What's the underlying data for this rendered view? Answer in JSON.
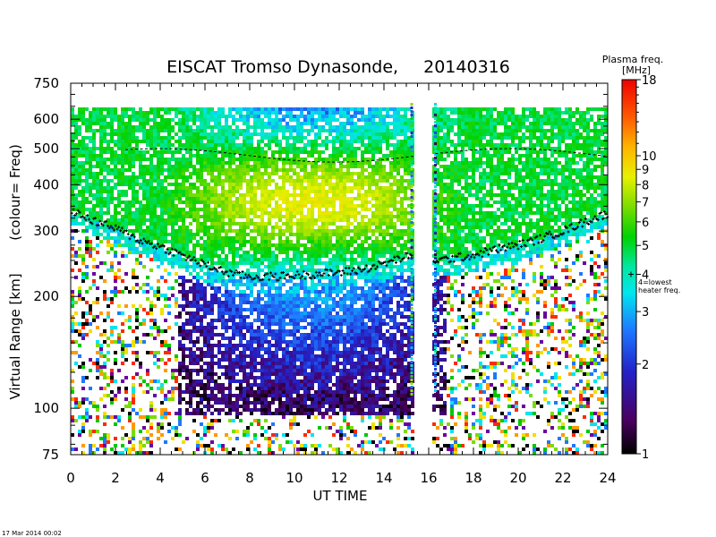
{
  "chart_data": {
    "type": "heatmap",
    "title": "EISCAT Tromso Dynasonde,",
    "date": "20140316",
    "xlabel": "UT TIME",
    "ylabel": "Virtual Range [km]",
    "ylabel_note": "(colour= Freq)",
    "x_range": [
      0,
      24
    ],
    "x_ticks": [
      "0",
      "2",
      "4",
      "6",
      "8",
      "10",
      "12",
      "14",
      "16",
      "18",
      "20",
      "22",
      "24"
    ],
    "y_scale": "log",
    "y_range": [
      75,
      750
    ],
    "y_ticks": [
      {
        "v": 75,
        "label": "75"
      },
      {
        "v": 100,
        "label": "100"
      },
      {
        "v": 200,
        "label": "200"
      },
      {
        "v": 300,
        "label": "300"
      },
      {
        "v": 400,
        "label": "400"
      },
      {
        "v": 500,
        "label": "500"
      },
      {
        "v": 600,
        "label": "600"
      },
      {
        "v": 750,
        "label": "750"
      }
    ],
    "data_gap_hours": [
      15.3,
      16.2
    ],
    "layer_trace": [
      {
        "ut": 0,
        "km": 340
      },
      {
        "ut": 1,
        "km": 320
      },
      {
        "ut": 2,
        "km": 305
      },
      {
        "ut": 3,
        "km": 285
      },
      {
        "ut": 4,
        "km": 272
      },
      {
        "ut": 5,
        "km": 258
      },
      {
        "ut": 6,
        "km": 243
      },
      {
        "ut": 7,
        "km": 232
      },
      {
        "ut": 8,
        "km": 226
      },
      {
        "ut": 9,
        "km": 226
      },
      {
        "ut": 10,
        "km": 228
      },
      {
        "ut": 11,
        "km": 230
      },
      {
        "ut": 12,
        "km": 232
      },
      {
        "ut": 13,
        "km": 236
      },
      {
        "ut": 14,
        "km": 245
      },
      {
        "ut": 15,
        "km": 256
      },
      {
        "ut": 16.5,
        "km": 250
      },
      {
        "ut": 17,
        "km": 253
      },
      {
        "ut": 18,
        "km": 258
      },
      {
        "ut": 19,
        "km": 268
      },
      {
        "ut": 20,
        "km": 275
      },
      {
        "ut": 21,
        "km": 286
      },
      {
        "ut": 22,
        "km": 300
      },
      {
        "ut": 23,
        "km": 318
      },
      {
        "ut": 24,
        "km": 335
      }
    ],
    "colorbar": {
      "title": "Plasma freq.",
      "unit": "[MHz]",
      "scale": "log",
      "range": [
        1,
        18
      ],
      "ticks": [
        {
          "v": 1,
          "label": "1"
        },
        {
          "v": 2,
          "label": "2"
        },
        {
          "v": 3,
          "label": "3"
        },
        {
          "v": 4,
          "label": "4"
        },
        {
          "v": 5,
          "label": "5"
        },
        {
          "v": 6,
          "label": "6"
        },
        {
          "v": 7,
          "label": "7"
        },
        {
          "v": 8,
          "label": "8"
        },
        {
          "v": 9,
          "label": "9"
        },
        {
          "v": 10,
          "label": "10"
        },
        {
          "v": 18,
          "label": "18"
        }
      ],
      "heater_marker": {
        "v": 4,
        "label_1": "4=lowest",
        "label_2": "heater freq."
      }
    }
  },
  "footer": {
    "timestamp": "17 Mar 2014 00:02"
  }
}
